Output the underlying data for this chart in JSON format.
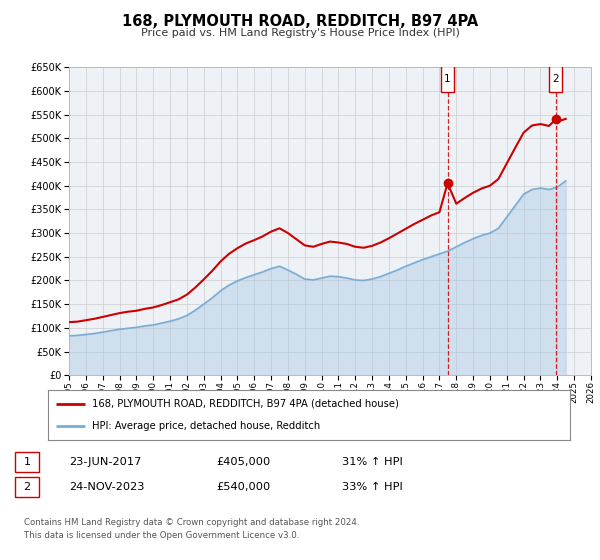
{
  "title": "168, PLYMOUTH ROAD, REDDITCH, B97 4PA",
  "subtitle": "Price paid vs. HM Land Registry's House Price Index (HPI)",
  "legend_line1": "168, PLYMOUTH ROAD, REDDITCH, B97 4PA (detached house)",
  "legend_line2": "HPI: Average price, detached house, Redditch",
  "sale1_date": "23-JUN-2017",
  "sale1_price": 405000,
  "sale1_hpi": "31% ↑ HPI",
  "sale2_date": "24-NOV-2023",
  "sale2_price": 540000,
  "sale2_hpi": "33% ↑ HPI",
  "footer1": "Contains HM Land Registry data © Crown copyright and database right 2024.",
  "footer2": "This data is licensed under the Open Government Licence v3.0.",
  "red_color": "#cc0000",
  "blue_color": "#7aadd4",
  "blue_fill": "#aac8e4",
  "grid_color": "#cccccc",
  "plot_bg": "#eef2f7",
  "ylim_min": 0,
  "ylim_max": 650000,
  "xmin": 1995,
  "xmax": 2026,
  "sale1_x": 2017.48,
  "sale2_x": 2023.9,
  "years_hpi": [
    1995.0,
    1995.5,
    1996.0,
    1996.5,
    1997.0,
    1997.5,
    1998.0,
    1998.5,
    1999.0,
    1999.5,
    2000.0,
    2000.5,
    2001.0,
    2001.5,
    2002.0,
    2002.5,
    2003.0,
    2003.5,
    2004.0,
    2004.5,
    2005.0,
    2005.5,
    2006.0,
    2006.5,
    2007.0,
    2007.5,
    2008.0,
    2008.5,
    2009.0,
    2009.5,
    2010.0,
    2010.5,
    2011.0,
    2011.5,
    2012.0,
    2012.5,
    2013.0,
    2013.5,
    2014.0,
    2014.5,
    2015.0,
    2015.5,
    2016.0,
    2016.5,
    2017.0,
    2017.5,
    2018.0,
    2018.5,
    2019.0,
    2019.5,
    2020.0,
    2020.5,
    2021.0,
    2021.5,
    2022.0,
    2022.5,
    2023.0,
    2023.5,
    2024.0,
    2024.5
  ],
  "hpi_values": [
    83000,
    84000,
    86000,
    88000,
    91000,
    94000,
    97000,
    99000,
    101000,
    104000,
    106000,
    110000,
    114000,
    119000,
    126000,
    137000,
    150000,
    163000,
    178000,
    190000,
    199000,
    206000,
    212000,
    218000,
    225000,
    230000,
    222000,
    213000,
    203000,
    201000,
    205000,
    209000,
    208000,
    205000,
    201000,
    200000,
    203000,
    208000,
    215000,
    222000,
    230000,
    237000,
    244000,
    250000,
    256000,
    262000,
    271000,
    280000,
    288000,
    295000,
    300000,
    310000,
    334000,
    358000,
    382000,
    392000,
    395000,
    392000,
    397000,
    410000
  ],
  "prop_years": [
    1995.0,
    1995.5,
    1996.0,
    1996.5,
    1997.0,
    1997.5,
    1998.0,
    1998.5,
    1999.0,
    1999.5,
    2000.0,
    2000.5,
    2001.0,
    2001.5,
    2002.0,
    2002.5,
    2003.0,
    2003.5,
    2004.0,
    2004.5,
    2005.0,
    2005.5,
    2006.0,
    2006.5,
    2007.0,
    2007.5,
    2008.0,
    2008.5,
    2009.0,
    2009.5,
    2010.0,
    2010.5,
    2011.0,
    2011.5,
    2012.0,
    2012.5,
    2013.0,
    2013.5,
    2014.0,
    2014.5,
    2015.0,
    2015.5,
    2016.0,
    2016.5,
    2017.0,
    2017.48,
    2018.0,
    2018.5,
    2019.0,
    2019.5,
    2020.0,
    2020.5,
    2021.0,
    2021.5,
    2022.0,
    2022.5,
    2023.0,
    2023.5,
    2023.9,
    2024.0,
    2024.5
  ],
  "prop_values": [
    112000,
    113000,
    116000,
    119000,
    123000,
    127000,
    131000,
    134000,
    136000,
    140000,
    143000,
    148000,
    154000,
    160000,
    170000,
    185000,
    202000,
    220000,
    240000,
    256000,
    268000,
    278000,
    285000,
    293000,
    303000,
    310000,
    300000,
    287000,
    274000,
    271000,
    277000,
    282000,
    280000,
    277000,
    271000,
    269000,
    273000,
    280000,
    289000,
    299000,
    309000,
    319000,
    328000,
    337000,
    344000,
    405000,
    362000,
    374000,
    385000,
    394000,
    400000,
    414000,
    447000,
    480000,
    512000,
    527000,
    530000,
    526000,
    540000,
    535000,
    541000
  ]
}
